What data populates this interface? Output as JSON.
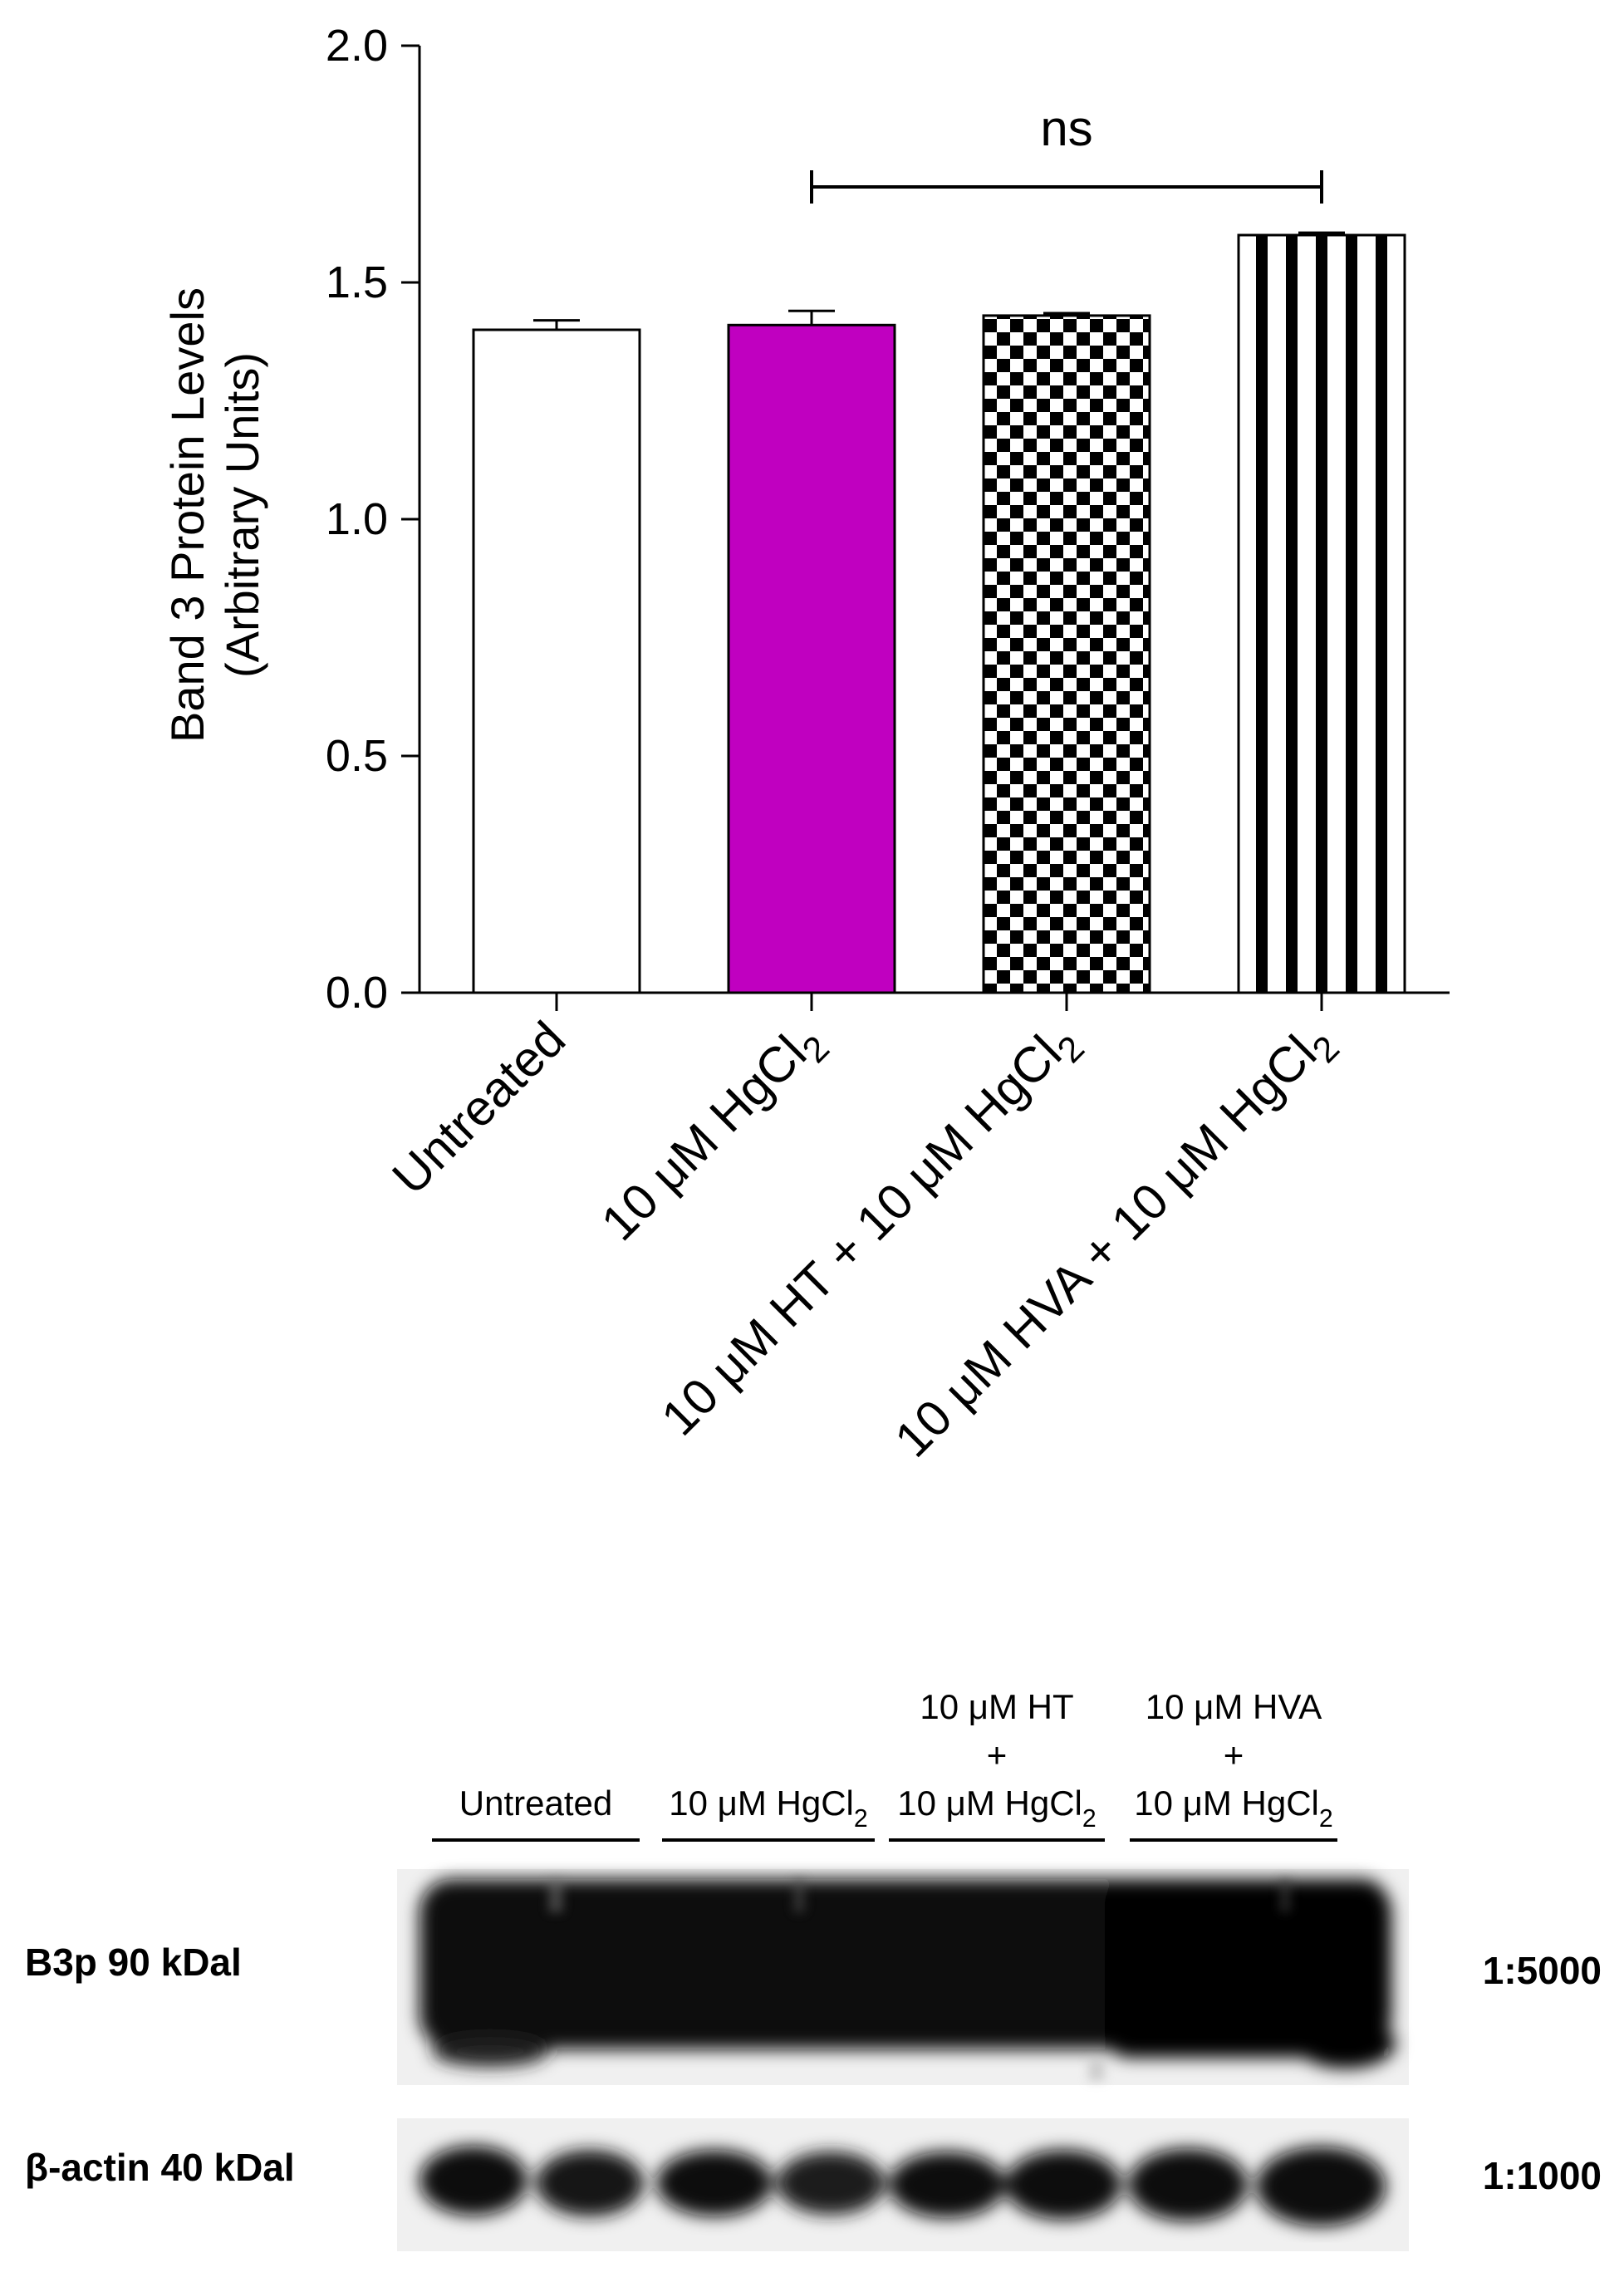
{
  "chart_data": {
    "type": "bar",
    "title": "",
    "ylabel_line1": "Band 3 Protein Levels",
    "ylabel_line2": "(Arbitrary Units)",
    "ylim": [
      0,
      2.0
    ],
    "yticks": [
      "0.0",
      "0.5",
      "1.0",
      "1.5",
      "2.0"
    ],
    "categories": [
      {
        "name": "Untreated",
        "main": "Untreated",
        "sub": ""
      },
      {
        "name": "10 μM HgCl2",
        "main": "10 μM HgCl",
        "sub": "2"
      },
      {
        "name": "10 μM HT + 10 μM HgCl2",
        "main": "10 μM HT + 10 μM HgCl",
        "sub": "2"
      },
      {
        "name": "10 μM HVA + 10 μM HgCl2",
        "main": "10 μM HVA + 10 μM HgCl",
        "sub": "2"
      }
    ],
    "values": [
      1.4,
      1.41,
      1.43,
      1.6
    ],
    "errors": [
      0.02,
      0.03,
      0.005,
      0.005
    ],
    "fills": [
      "white",
      "#c000c0",
      "checker",
      "stripes"
    ],
    "grid": false,
    "annotation": {
      "text": "ns",
      "from_index": 1,
      "to_index": 3
    }
  },
  "blot": {
    "lane_groups": [
      {
        "lines": [
          "Untreated"
        ],
        "sub": ""
      },
      {
        "lines": [
          "10 μM HgCl"
        ],
        "sub": "2"
      },
      {
        "lines": [
          "10 μM HT",
          "+",
          "10 μM HgCl"
        ],
        "sub": "2"
      },
      {
        "lines": [
          "10 μM HVA",
          "+",
          "10 μM HgCl"
        ],
        "sub": "2"
      }
    ],
    "rows": [
      {
        "label": "B3p 90 kDal",
        "dilution": "1:5000"
      },
      {
        "label": "β-actin 40 kDal",
        "dilution": "1:1000"
      }
    ]
  }
}
